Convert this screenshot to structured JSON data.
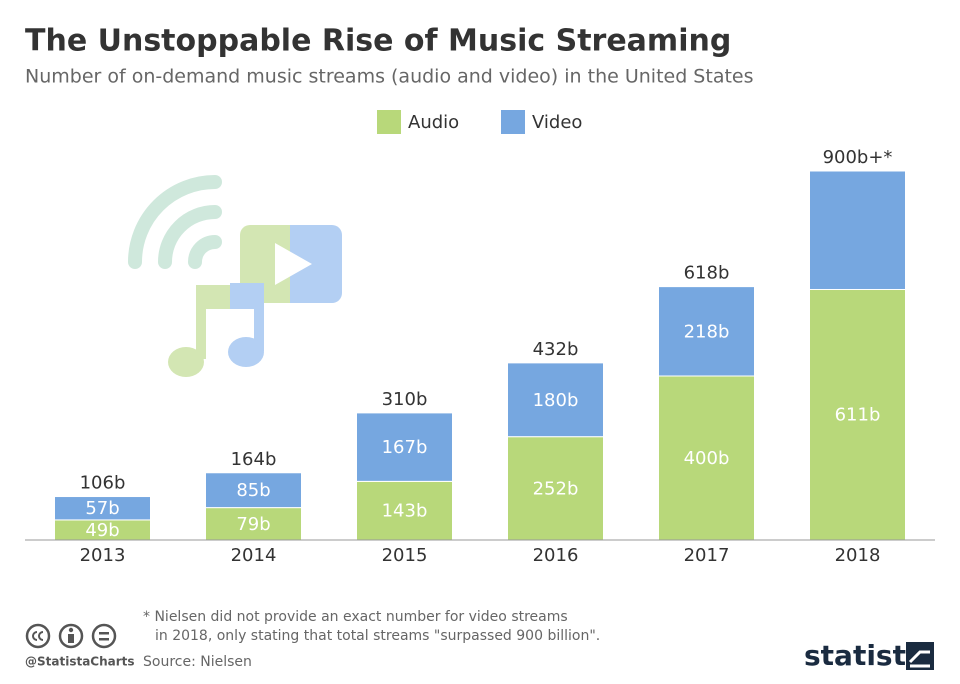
{
  "chart_data": {
    "type": "stacked-bar",
    "title": "The Unstoppable Rise of Music Streaming",
    "subtitle": "Number of on-demand music streams (audio and video) in the United States",
    "categories": [
      "2013",
      "2014",
      "2015",
      "2016",
      "2017",
      "2018"
    ],
    "series": [
      {
        "name": "Audio",
        "color": "#b8d87a",
        "values": [
          49,
          79,
          143,
          252,
          400,
          611
        ],
        "value_labels": [
          "49b",
          "79b",
          "143b",
          "252b",
          "400b",
          "611b"
        ]
      },
      {
        "name": "Video",
        "color": "#76a7e0",
        "values": [
          57,
          85,
          167,
          180,
          218,
          289
        ],
        "value_labels": [
          "57b",
          "85b",
          "167b",
          "180b",
          "218b",
          null
        ]
      }
    ],
    "totals": [
      106,
      164,
      310,
      432,
      618,
      900
    ],
    "total_labels": [
      "106b",
      "164b",
      "310b",
      "432b",
      "618b",
      "900b+*"
    ],
    "footnote": [
      "* Nielsen did not provide an exact number for video streams",
      "in 2018, only stating that total streams \"surpassed 900 billion\"."
    ],
    "source": "Source: Nielsen",
    "credit": "@StatistaCharts",
    "brand": "statista"
  }
}
